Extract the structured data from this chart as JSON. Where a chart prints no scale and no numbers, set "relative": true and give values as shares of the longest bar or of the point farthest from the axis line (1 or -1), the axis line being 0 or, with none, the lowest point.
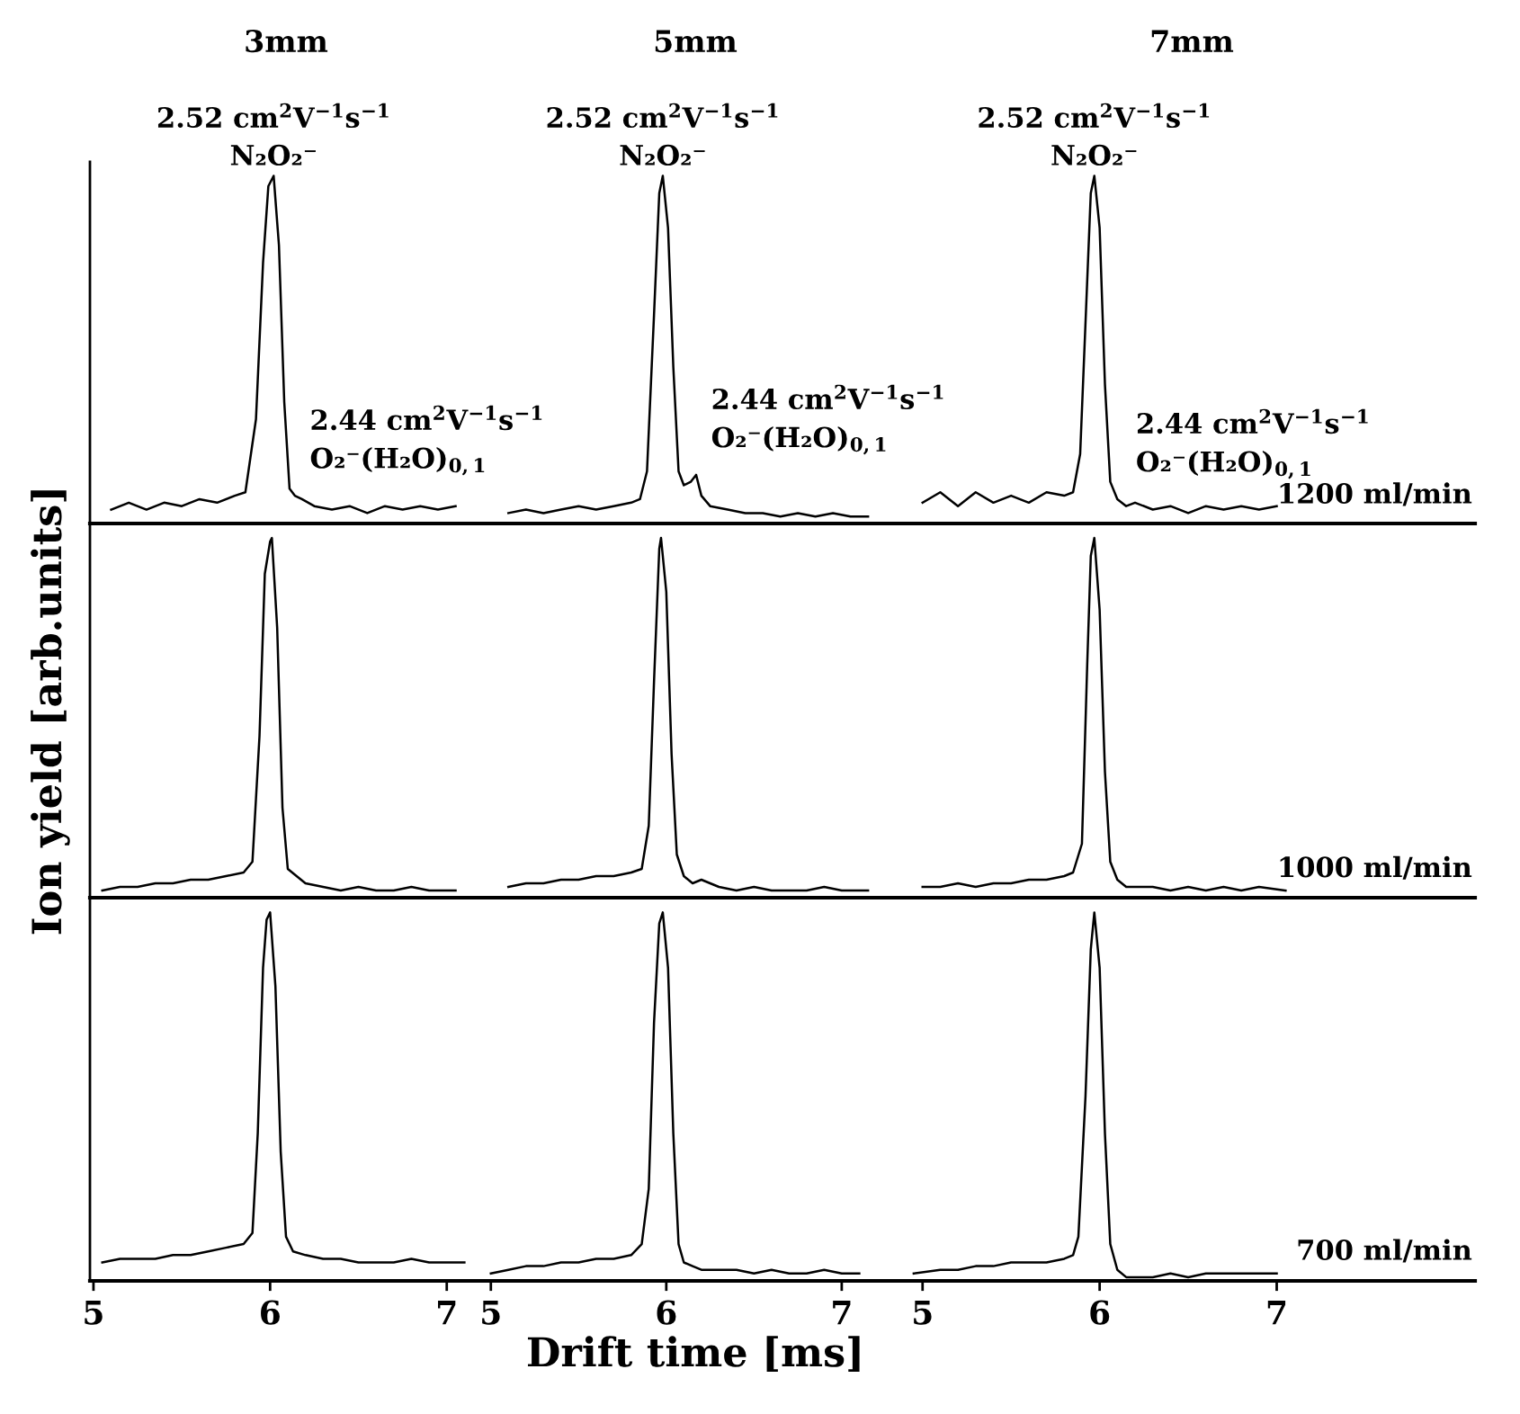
{
  "chart_data": [
    {
      "type": "line",
      "relative": true,
      "title": "3mm",
      "xlim": [
        4.98,
        7.2
      ],
      "tick_labels": false,
      "annotations": [
        {
          "text": "N₂O₂⁻",
          "x": 6.02,
          "y": 1.0
        },
        {
          "text": "2.52 cm$^{2}$V$^{−1}$s$^{−1}$",
          "x": 6.02,
          "y": 1.0
        },
        {
          "text": "O₂⁻(H₂O)$_{0,1}$",
          "x": 6.14,
          "y": 0.08
        },
        {
          "text": "2.44 cm$^{2}$V$^{−1}$s$^{−1}$",
          "x": 6.14,
          "y": 0.08
        }
      ],
      "x": [
        5.1,
        5.2,
        5.3,
        5.4,
        5.5,
        5.6,
        5.7,
        5.8,
        5.86,
        5.92,
        5.96,
        5.99,
        6.02,
        6.05,
        6.08,
        6.11,
        6.14,
        6.18,
        6.25,
        6.35,
        6.45,
        6.55,
        6.65,
        6.75,
        6.85,
        6.95,
        7.05
      ],
      "series": [
        {
          "color": "#000000",
          "values": [
            0.04,
            0.06,
            0.04,
            0.06,
            0.05,
            0.07,
            0.06,
            0.08,
            0.09,
            0.3,
            0.75,
            0.97,
            1.0,
            0.8,
            0.35,
            0.1,
            0.08,
            0.07,
            0.05,
            0.04,
            0.05,
            0.03,
            0.05,
            0.04,
            0.05,
            0.04,
            0.05
          ]
        }
      ]
    },
    {
      "type": "line",
      "relative": true,
      "title": "5mm",
      "xlim": [
        4.95,
        7.38
      ],
      "tick_labels": false,
      "annotations": [
        {
          "text": "N₂O₂⁻",
          "x": 5.98,
          "y": 1.0
        },
        {
          "text": "2.52 cm$^{2}$V$^{−1}$s$^{−1}$",
          "x": 5.98,
          "y": 1.0
        },
        {
          "text": "O₂⁻(H₂O)$_{0,1}$",
          "x": 6.17,
          "y": 0.14
        },
        {
          "text": "2.44 cm$^{2}$V$^{−1}$s$^{−1}$",
          "x": 6.17,
          "y": 0.14
        }
      ],
      "x": [
        5.1,
        5.2,
        5.3,
        5.4,
        5.5,
        5.6,
        5.7,
        5.8,
        5.85,
        5.89,
        5.93,
        5.96,
        5.98,
        6.01,
        6.04,
        6.07,
        6.1,
        6.14,
        6.17,
        6.2,
        6.25,
        6.35,
        6.45,
        6.55,
        6.65,
        6.75,
        6.85,
        6.95,
        7.05,
        7.15
      ],
      "series": [
        {
          "color": "#000000",
          "values": [
            0.03,
            0.04,
            0.03,
            0.04,
            0.05,
            0.04,
            0.05,
            0.06,
            0.07,
            0.15,
            0.6,
            0.95,
            1.0,
            0.85,
            0.45,
            0.15,
            0.11,
            0.12,
            0.14,
            0.08,
            0.05,
            0.04,
            0.03,
            0.03,
            0.02,
            0.03,
            0.02,
            0.03,
            0.02,
            0.02
          ]
        }
      ]
    },
    {
      "type": "line",
      "relative": true,
      "title": "7mm",
      "xlim": [
        4.92,
        8.12
      ],
      "tick_labels": false,
      "annotations": [
        {
          "text": "N₂O₂⁻",
          "x": 5.97,
          "y": 1.0
        },
        {
          "text": "2.52 cm$^{2}$V$^{−1}$s$^{−1}$",
          "x": 5.97,
          "y": 1.0
        },
        {
          "text": "O₂⁻(H₂O)$_{0,1}$",
          "x": 6.12,
          "y": 0.07
        },
        {
          "text": "2.44 cm$^{2}$V$^{−1}$s$^{−1}$",
          "x": 6.12,
          "y": 0.07
        },
        "1200 ml/min"
      ],
      "x": [
        5.0,
        5.1,
        5.2,
        5.3,
        5.4,
        5.5,
        5.6,
        5.7,
        5.8,
        5.85,
        5.89,
        5.93,
        5.95,
        5.97,
        6.0,
        6.03,
        6.06,
        6.1,
        6.15,
        6.2,
        6.3,
        6.4,
        6.5,
        6.6,
        6.7,
        6.8,
        6.9,
        7.0
      ],
      "series": [
        {
          "color": "#000000",
          "values": [
            0.06,
            0.09,
            0.05,
            0.09,
            0.06,
            0.08,
            0.06,
            0.09,
            0.08,
            0.09,
            0.2,
            0.7,
            0.95,
            1.0,
            0.85,
            0.4,
            0.12,
            0.07,
            0.05,
            0.06,
            0.04,
            0.05,
            0.03,
            0.05,
            0.04,
            0.05,
            0.04,
            0.05
          ]
        }
      ]
    },
    {
      "type": "line",
      "relative": true,
      "ylabel": "Ion yield [arb.units]",
      "xlim": [
        4.98,
        7.2
      ],
      "tick_labels": false,
      "x": [
        5.05,
        5.15,
        5.25,
        5.35,
        5.45,
        5.55,
        5.65,
        5.75,
        5.85,
        5.9,
        5.94,
        5.97,
        6.0,
        6.01,
        6.04,
        6.07,
        6.1,
        6.15,
        6.2,
        6.3,
        6.4,
        6.5,
        6.6,
        6.7,
        6.8,
        6.9,
        7.05
      ],
      "series": [
        {
          "color": "#000000",
          "values": [
            0.02,
            0.03,
            0.03,
            0.04,
            0.04,
            0.05,
            0.05,
            0.06,
            0.07,
            0.1,
            0.45,
            0.9,
            0.99,
            1.0,
            0.75,
            0.25,
            0.08,
            0.06,
            0.04,
            0.03,
            0.02,
            0.03,
            0.02,
            0.02,
            0.03,
            0.02,
            0.02
          ]
        }
      ]
    },
    {
      "type": "line",
      "relative": true,
      "xlim": [
        4.95,
        7.38
      ],
      "tick_labels": false,
      "x": [
        5.1,
        5.2,
        5.3,
        5.4,
        5.5,
        5.6,
        5.7,
        5.8,
        5.86,
        5.9,
        5.93,
        5.96,
        5.97,
        6.0,
        6.03,
        6.06,
        6.1,
        6.15,
        6.2,
        6.3,
        6.4,
        6.5,
        6.6,
        6.7,
        6.8,
        6.9,
        7.0,
        7.15
      ],
      "series": [
        {
          "color": "#000000",
          "values": [
            0.03,
            0.04,
            0.04,
            0.05,
            0.05,
            0.06,
            0.06,
            0.07,
            0.08,
            0.2,
            0.6,
            0.97,
            1.0,
            0.85,
            0.4,
            0.12,
            0.06,
            0.04,
            0.05,
            0.03,
            0.02,
            0.03,
            0.02,
            0.02,
            0.02,
            0.03,
            0.02,
            0.02
          ]
        }
      ]
    },
    {
      "type": "line",
      "relative": true,
      "xlim": [
        4.92,
        8.12
      ],
      "tick_labels": false,
      "annotations": [
        "1000 ml/min"
      ],
      "x": [
        5.0,
        5.1,
        5.2,
        5.3,
        5.4,
        5.5,
        5.6,
        5.7,
        5.8,
        5.85,
        5.9,
        5.93,
        5.95,
        5.97,
        6.0,
        6.03,
        6.06,
        6.1,
        6.15,
        6.2,
        6.3,
        6.4,
        6.5,
        6.6,
        6.7,
        6.8,
        6.9,
        7.05
      ],
      "series": [
        {
          "color": "#000000",
          "values": [
            0.03,
            0.03,
            0.04,
            0.03,
            0.04,
            0.04,
            0.05,
            0.05,
            0.06,
            0.07,
            0.15,
            0.65,
            0.95,
            1.0,
            0.8,
            0.35,
            0.1,
            0.05,
            0.03,
            0.03,
            0.03,
            0.02,
            0.03,
            0.02,
            0.03,
            0.02,
            0.03,
            0.02
          ]
        }
      ]
    },
    {
      "type": "line",
      "relative": true,
      "xlim": [
        4.98,
        7.2
      ],
      "xticks": [
        5,
        6,
        7
      ],
      "tick_labels": "x",
      "x": [
        5.05,
        5.15,
        5.25,
        5.35,
        5.45,
        5.55,
        5.65,
        5.75,
        5.85,
        5.9,
        5.93,
        5.96,
        5.98,
        6.0,
        6.03,
        6.06,
        6.09,
        6.13,
        6.2,
        6.3,
        6.4,
        6.5,
        6.6,
        6.7,
        6.8,
        6.9,
        7.0,
        7.1
      ],
      "series": [
        {
          "color": "#000000",
          "values": [
            0.05,
            0.06,
            0.06,
            0.06,
            0.07,
            0.07,
            0.08,
            0.09,
            0.1,
            0.13,
            0.4,
            0.85,
            0.98,
            1.0,
            0.8,
            0.35,
            0.12,
            0.08,
            0.07,
            0.06,
            0.06,
            0.05,
            0.05,
            0.05,
            0.06,
            0.05,
            0.05,
            0.05
          ]
        }
      ]
    },
    {
      "type": "line",
      "relative": true,
      "xlabel": "Drift time [ms]",
      "xlim": [
        4.95,
        7.38
      ],
      "xticks": [
        5,
        6,
        7
      ],
      "tick_labels": "x",
      "x": [
        5.0,
        5.1,
        5.2,
        5.3,
        5.4,
        5.5,
        5.6,
        5.7,
        5.8,
        5.86,
        5.9,
        5.93,
        5.96,
        5.98,
        6.01,
        6.04,
        6.07,
        6.1,
        6.15,
        6.2,
        6.3,
        6.4,
        6.5,
        6.6,
        6.7,
        6.8,
        6.9,
        7.0,
        7.1
      ],
      "series": [
        {
          "color": "#000000",
          "values": [
            0.02,
            0.03,
            0.04,
            0.04,
            0.05,
            0.05,
            0.06,
            0.06,
            0.07,
            0.1,
            0.25,
            0.7,
            0.97,
            1.0,
            0.85,
            0.4,
            0.1,
            0.05,
            0.04,
            0.03,
            0.03,
            0.03,
            0.02,
            0.03,
            0.02,
            0.02,
            0.03,
            0.02,
            0.02
          ]
        }
      ]
    },
    {
      "type": "line",
      "relative": true,
      "xlim": [
        4.92,
        8.12
      ],
      "xticks": [
        5,
        6,
        7
      ],
      "tick_labels": "x",
      "annotations": [
        "700 ml/min"
      ],
      "x": [
        4.95,
        5.1,
        5.2,
        5.3,
        5.4,
        5.5,
        5.6,
        5.7,
        5.8,
        5.85,
        5.88,
        5.92,
        5.95,
        5.97,
        6.0,
        6.03,
        6.06,
        6.1,
        6.15,
        6.2,
        6.3,
        6.4,
        6.5,
        6.6,
        6.7,
        6.8,
        6.9,
        7.0
      ],
      "series": [
        {
          "color": "#000000",
          "values": [
            0.02,
            0.03,
            0.03,
            0.04,
            0.04,
            0.05,
            0.05,
            0.05,
            0.06,
            0.07,
            0.12,
            0.5,
            0.9,
            1.0,
            0.85,
            0.4,
            0.1,
            0.03,
            0.01,
            0.01,
            0.01,
            0.02,
            0.01,
            0.02,
            0.02,
            0.02,
            0.02,
            0.02
          ]
        }
      ]
    }
  ]
}
